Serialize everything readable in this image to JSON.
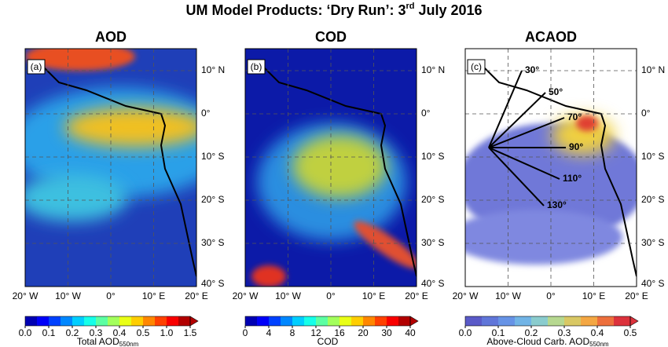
{
  "title": {
    "main": "UM Model Products: ‘Dry Run’: 3",
    "sup": "rd",
    "tail": " July 2016"
  },
  "lat_labels": [
    "10° N",
    "0°",
    "10° S",
    "20° S",
    "30° S",
    "40° S"
  ],
  "lon_labels": [
    "20° W",
    "10° W",
    "0°",
    "10° E",
    "20° E"
  ],
  "panels": [
    {
      "title": "AOD",
      "label": "(a)",
      "colorbar": {
        "ticks": [
          "0.0",
          "0.1",
          "0.2",
          "0.3",
          "0.4",
          "0.5",
          "1.0",
          "1.5"
        ],
        "label": "Total AOD",
        "label_sub": "550nm"
      }
    },
    {
      "title": "COD",
      "label": "(b)",
      "colorbar": {
        "ticks": [
          "0",
          "4",
          "8",
          "12",
          "16",
          "20",
          "30",
          "40"
        ],
        "label": "COD"
      }
    },
    {
      "title": "ACAOD",
      "label": "(c)",
      "angles": [
        "30°",
        "50°",
        "70°",
        "90°",
        "110°",
        "130°"
      ],
      "colorbar": {
        "ticks": [
          "0.0",
          "0.1",
          "0.2",
          "0.3",
          "0.4",
          "0.5"
        ],
        "label": "Above-Cloud Carb. AOD",
        "label_sub": "550nm"
      }
    }
  ]
}
